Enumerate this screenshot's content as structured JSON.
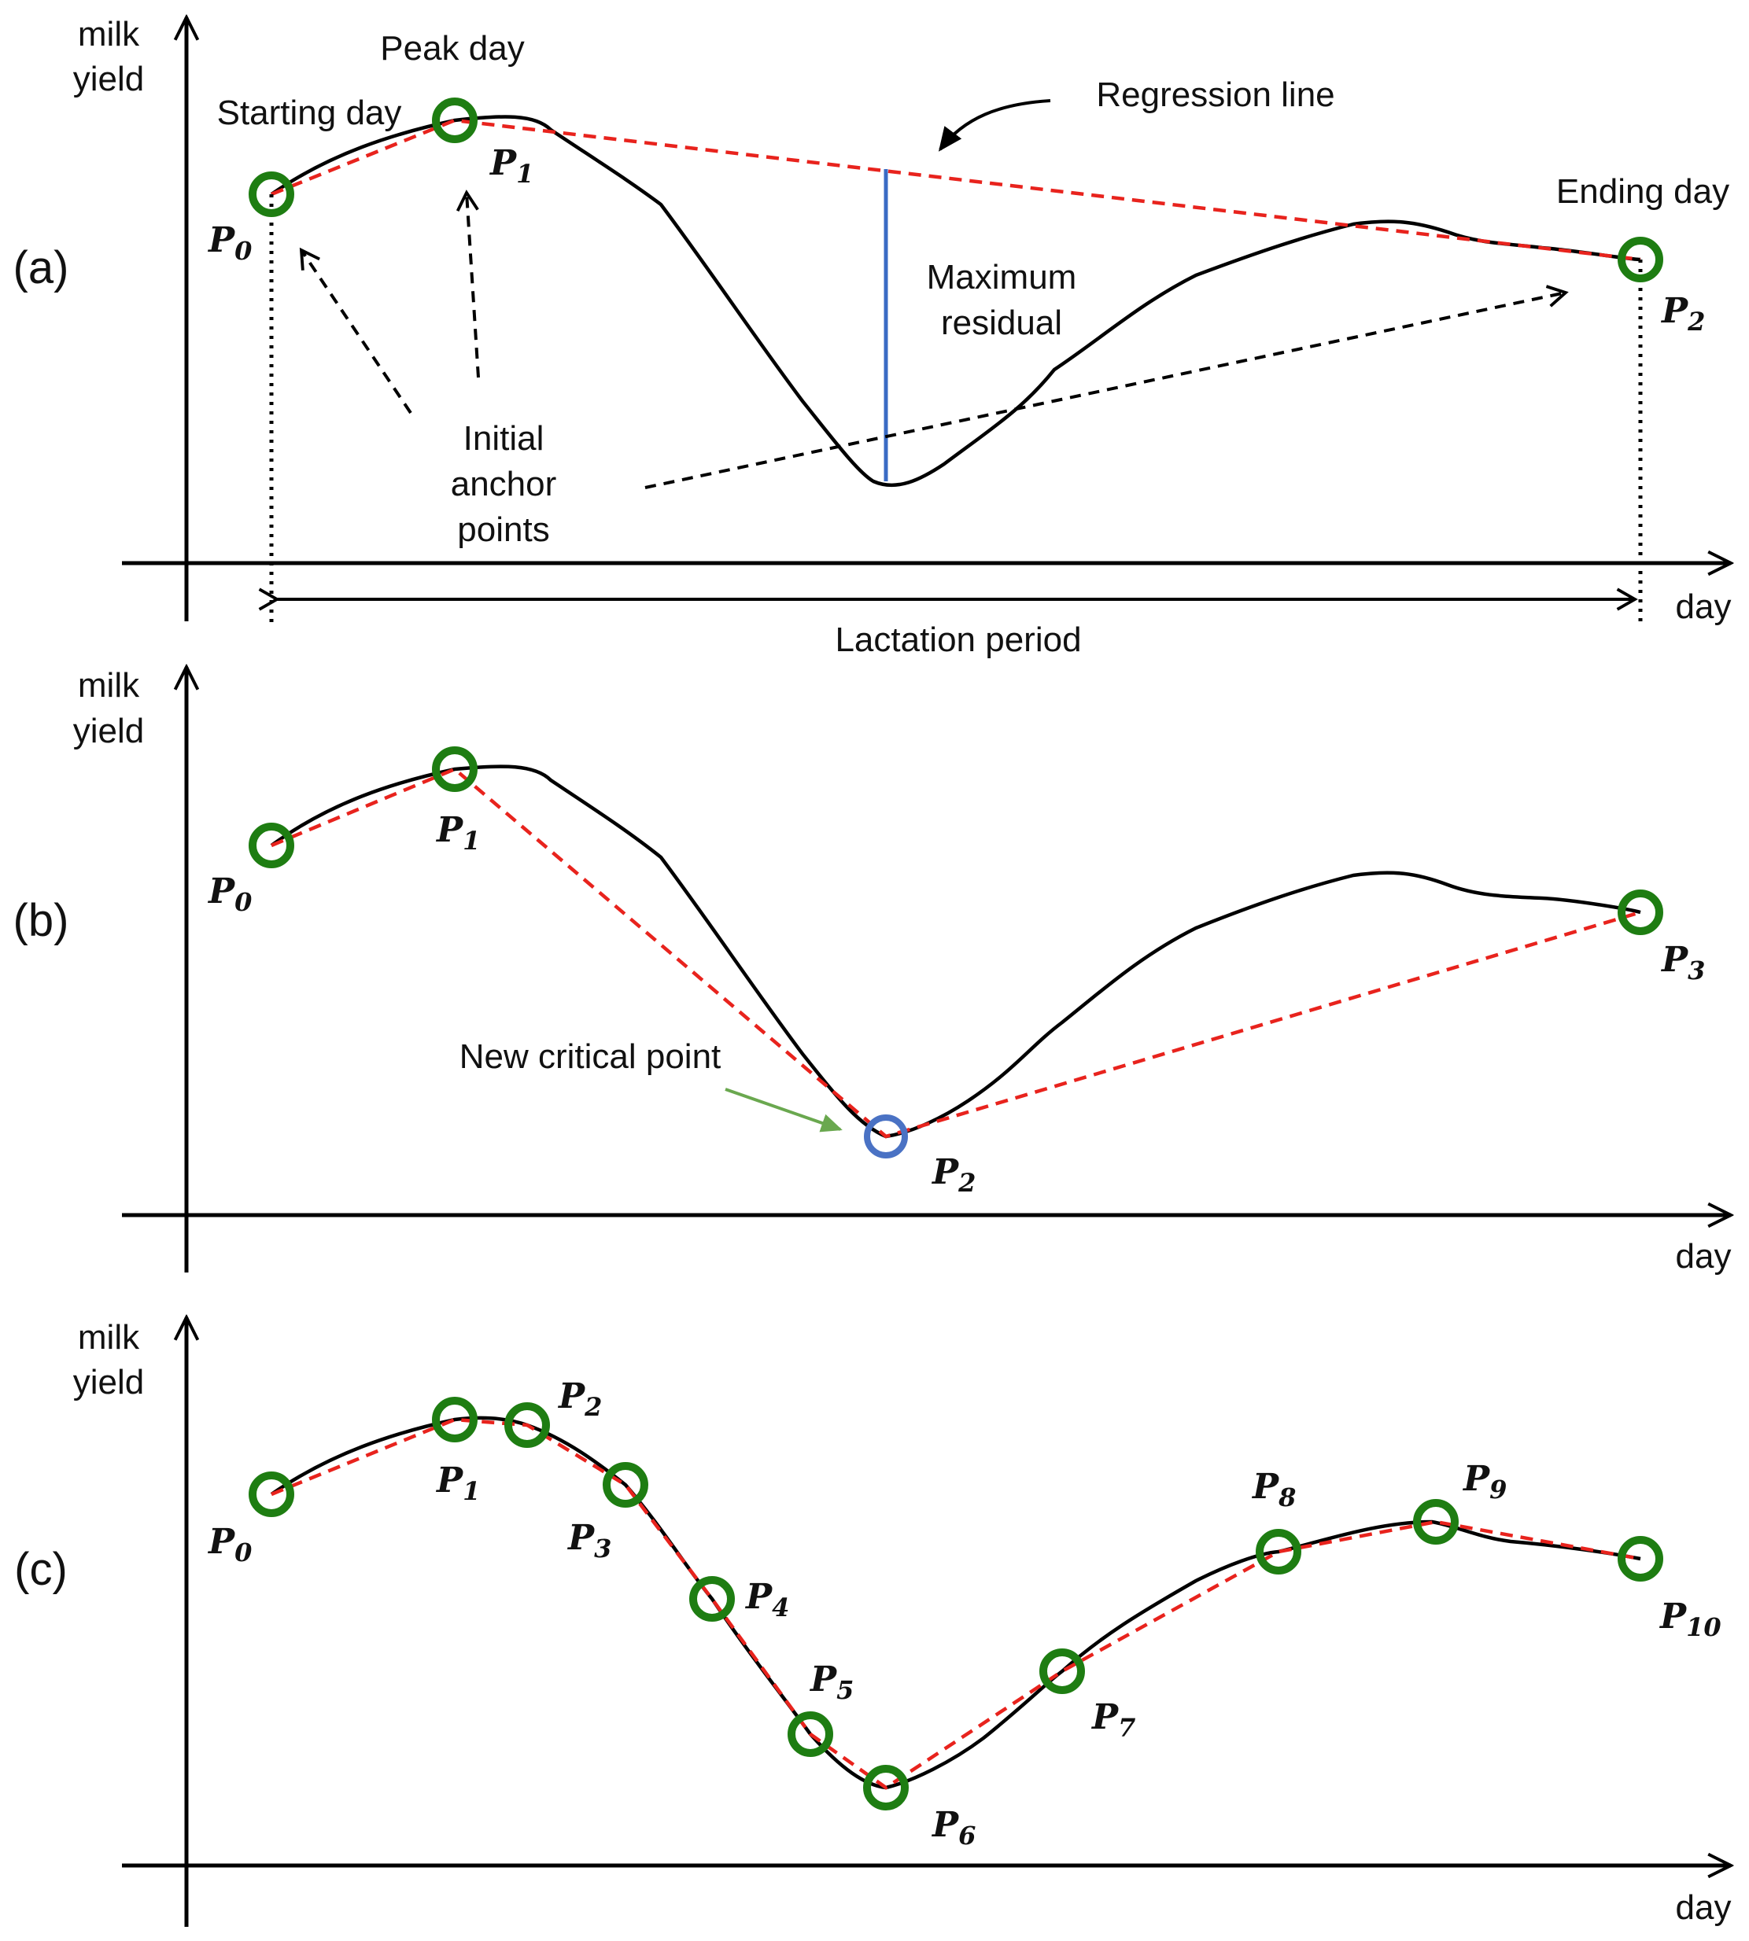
{
  "axis": {
    "y_label_line1": "milk",
    "y_label_line2": "yield",
    "x_label": "day"
  },
  "colors": {
    "curve": "#000000",
    "fit": "#e8231d",
    "anchor": "#1e7d12",
    "new_point": "#4a72c4",
    "residual": "#3a6bc4",
    "green_arrow": "#6aa84f"
  },
  "panels": [
    {
      "id": "a",
      "label": "(a)",
      "annotations": {
        "starting_day": "Starting day",
        "peak_day": "Peak day",
        "ending_day": "Ending day",
        "regression_line": "Regression line",
        "max_residual_line1": "Maximum",
        "max_residual_line2": "residual",
        "initial_line1": "Initial",
        "initial_line2": "anchor",
        "initial_line3": "points",
        "lactation_period": "Lactation period"
      },
      "points": [
        "P",
        "P",
        "P"
      ],
      "subs": [
        "0",
        "1",
        "2"
      ]
    },
    {
      "id": "b",
      "label": "(b)",
      "annotations": {
        "new_critical_point": "New critical point"
      },
      "points": [
        "P",
        "P",
        "P",
        "P"
      ],
      "subs": [
        "0",
        "1",
        "2",
        "3"
      ]
    },
    {
      "id": "c",
      "label": "(c)",
      "points": [
        "P",
        "P",
        "P",
        "P",
        "P",
        "P",
        "P",
        "P",
        "P",
        "P",
        "P"
      ],
      "subs": [
        "0",
        "1",
        "2",
        "3",
        "4",
        "5",
        "6",
        "7",
        "8",
        "9",
        "10"
      ]
    }
  ]
}
